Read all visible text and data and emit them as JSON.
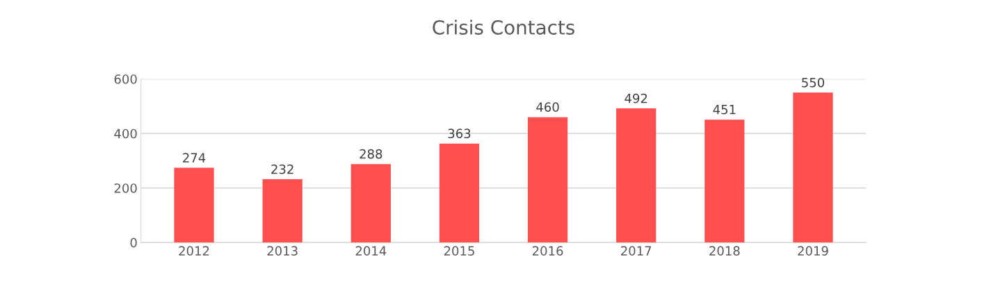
{
  "chart_data": {
    "type": "bar",
    "title": "Crisis Contacts",
    "categories": [
      "2012",
      "2013",
      "2014",
      "2015",
      "2016",
      "2017",
      "2018",
      "2019"
    ],
    "values": [
      274,
      232,
      288,
      363,
      460,
      492,
      451,
      550
    ],
    "color": "#ff4f4f",
    "ylim": [
      0,
      600
    ],
    "yticks": [
      0,
      200,
      400,
      600
    ],
    "grid": "y",
    "data_labels": true
  }
}
